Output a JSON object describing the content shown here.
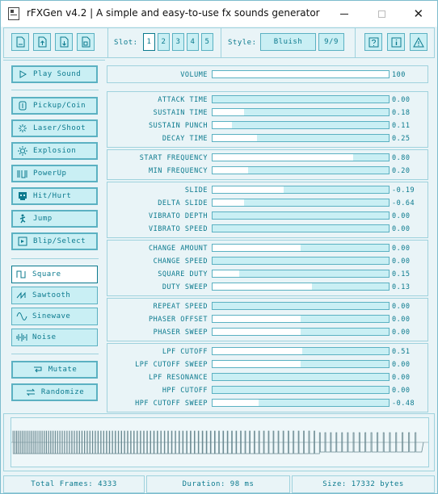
{
  "window": {
    "title": "rFXGen v4.2 | A simple and easy-to-use fx sounds generator",
    "minimize": "—",
    "maximize": "□",
    "close": "✕"
  },
  "toolbar": {
    "slot_label": "Slot:",
    "slots": [
      "1",
      "2",
      "3",
      "4",
      "5"
    ],
    "active_slot": "1",
    "style_label": "Style:",
    "style_value": "Bluish",
    "style_index": "9/9",
    "icons": [
      "new-file-icon",
      "open-file-icon",
      "save-file-icon",
      "export-file-icon",
      "help-icon",
      "info-icon",
      "warning-icon"
    ]
  },
  "left": {
    "play_sound": "Play Sound",
    "presets": [
      {
        "label": "Pickup/Coin",
        "icon": "coin-icon"
      },
      {
        "label": "Laser/Shoot",
        "icon": "laser-icon"
      },
      {
        "label": "Explosion",
        "icon": "explosion-icon"
      },
      {
        "label": "PowerUp",
        "icon": "powerup-icon"
      },
      {
        "label": "Hit/Hurt",
        "icon": "skull-icon"
      },
      {
        "label": "Jump",
        "icon": "jump-icon"
      },
      {
        "label": "Blip/Select",
        "icon": "blip-icon"
      }
    ],
    "waves": [
      {
        "label": "Square",
        "icon": "square-wave-icon"
      },
      {
        "label": "Sawtooth",
        "icon": "sawtooth-wave-icon"
      },
      {
        "label": "Sinewave",
        "icon": "sine-wave-icon"
      },
      {
        "label": "Noise",
        "icon": "noise-wave-icon"
      }
    ],
    "active_wave": "Square",
    "mutate": "Mutate",
    "randomize": "Randomize"
  },
  "volume": {
    "label": "VOLUME",
    "value": "100",
    "fraction": 1.0
  },
  "groups": [
    {
      "rows": [
        {
          "label": "ATTACK TIME",
          "value": "0.00",
          "fraction": 0.0
        },
        {
          "label": "SUSTAIN TIME",
          "value": "0.18",
          "fraction": 0.18
        },
        {
          "label": "SUSTAIN PUNCH",
          "value": "0.11",
          "fraction": 0.11
        },
        {
          "label": "DECAY TIME",
          "value": "0.25",
          "fraction": 0.25
        }
      ]
    },
    {
      "rows": [
        {
          "label": "START FREQUENCY",
          "value": "0.80",
          "fraction": 0.8
        },
        {
          "label": "MIN FREQUENCY",
          "value": "0.20",
          "fraction": 0.2
        }
      ]
    },
    {
      "rows": [
        {
          "label": "SLIDE",
          "value": "-0.19",
          "fraction": 0.405
        },
        {
          "label": "DELTA SLIDE",
          "value": "-0.64",
          "fraction": 0.18
        },
        {
          "label": "VIBRATO DEPTH",
          "value": "0.00",
          "fraction": 0.0
        },
        {
          "label": "VIBRATO SPEED",
          "value": "0.00",
          "fraction": 0.0
        }
      ]
    },
    {
      "rows": [
        {
          "label": "CHANGE AMOUNT",
          "value": "0.00",
          "fraction": 0.5
        },
        {
          "label": "CHANGE SPEED",
          "value": "0.00",
          "fraction": 0.0
        },
        {
          "label": "SQUARE DUTY",
          "value": "0.15",
          "fraction": 0.15
        },
        {
          "label": "DUTY SWEEP",
          "value": "0.13",
          "fraction": 0.565
        }
      ]
    },
    {
      "rows": [
        {
          "label": "REPEAT SPEED",
          "value": "0.00",
          "fraction": 0.0
        },
        {
          "label": "PHASER OFFSET",
          "value": "0.00",
          "fraction": 0.5
        },
        {
          "label": "PHASER SWEEP",
          "value": "0.00",
          "fraction": 0.5
        }
      ]
    },
    {
      "rows": [
        {
          "label": "LPF CUTOFF",
          "value": "0.51",
          "fraction": 0.51
        },
        {
          "label": "LPF CUTOFF SWEEP",
          "value": "0.00",
          "fraction": 0.5
        },
        {
          "label": "LPF RESONANCE",
          "value": "0.00",
          "fraction": 0.0
        },
        {
          "label": "HPF CUTOFF",
          "value": "0.00",
          "fraction": 0.0
        },
        {
          "label": "HPF CUTOFF SWEEP",
          "value": "-0.48",
          "fraction": 0.26
        }
      ]
    }
  ],
  "status": {
    "frames": "Total Frames: 4333",
    "duration": "Duration: 98 ms",
    "size": "Size: 17332 bytes"
  },
  "colors": {
    "accent": "#0b7a8e",
    "control_bg": "#c9eff4",
    "border": "#5bb1c2",
    "panel_bg": "#e9f4f7",
    "waveform": "#6b8a92"
  }
}
